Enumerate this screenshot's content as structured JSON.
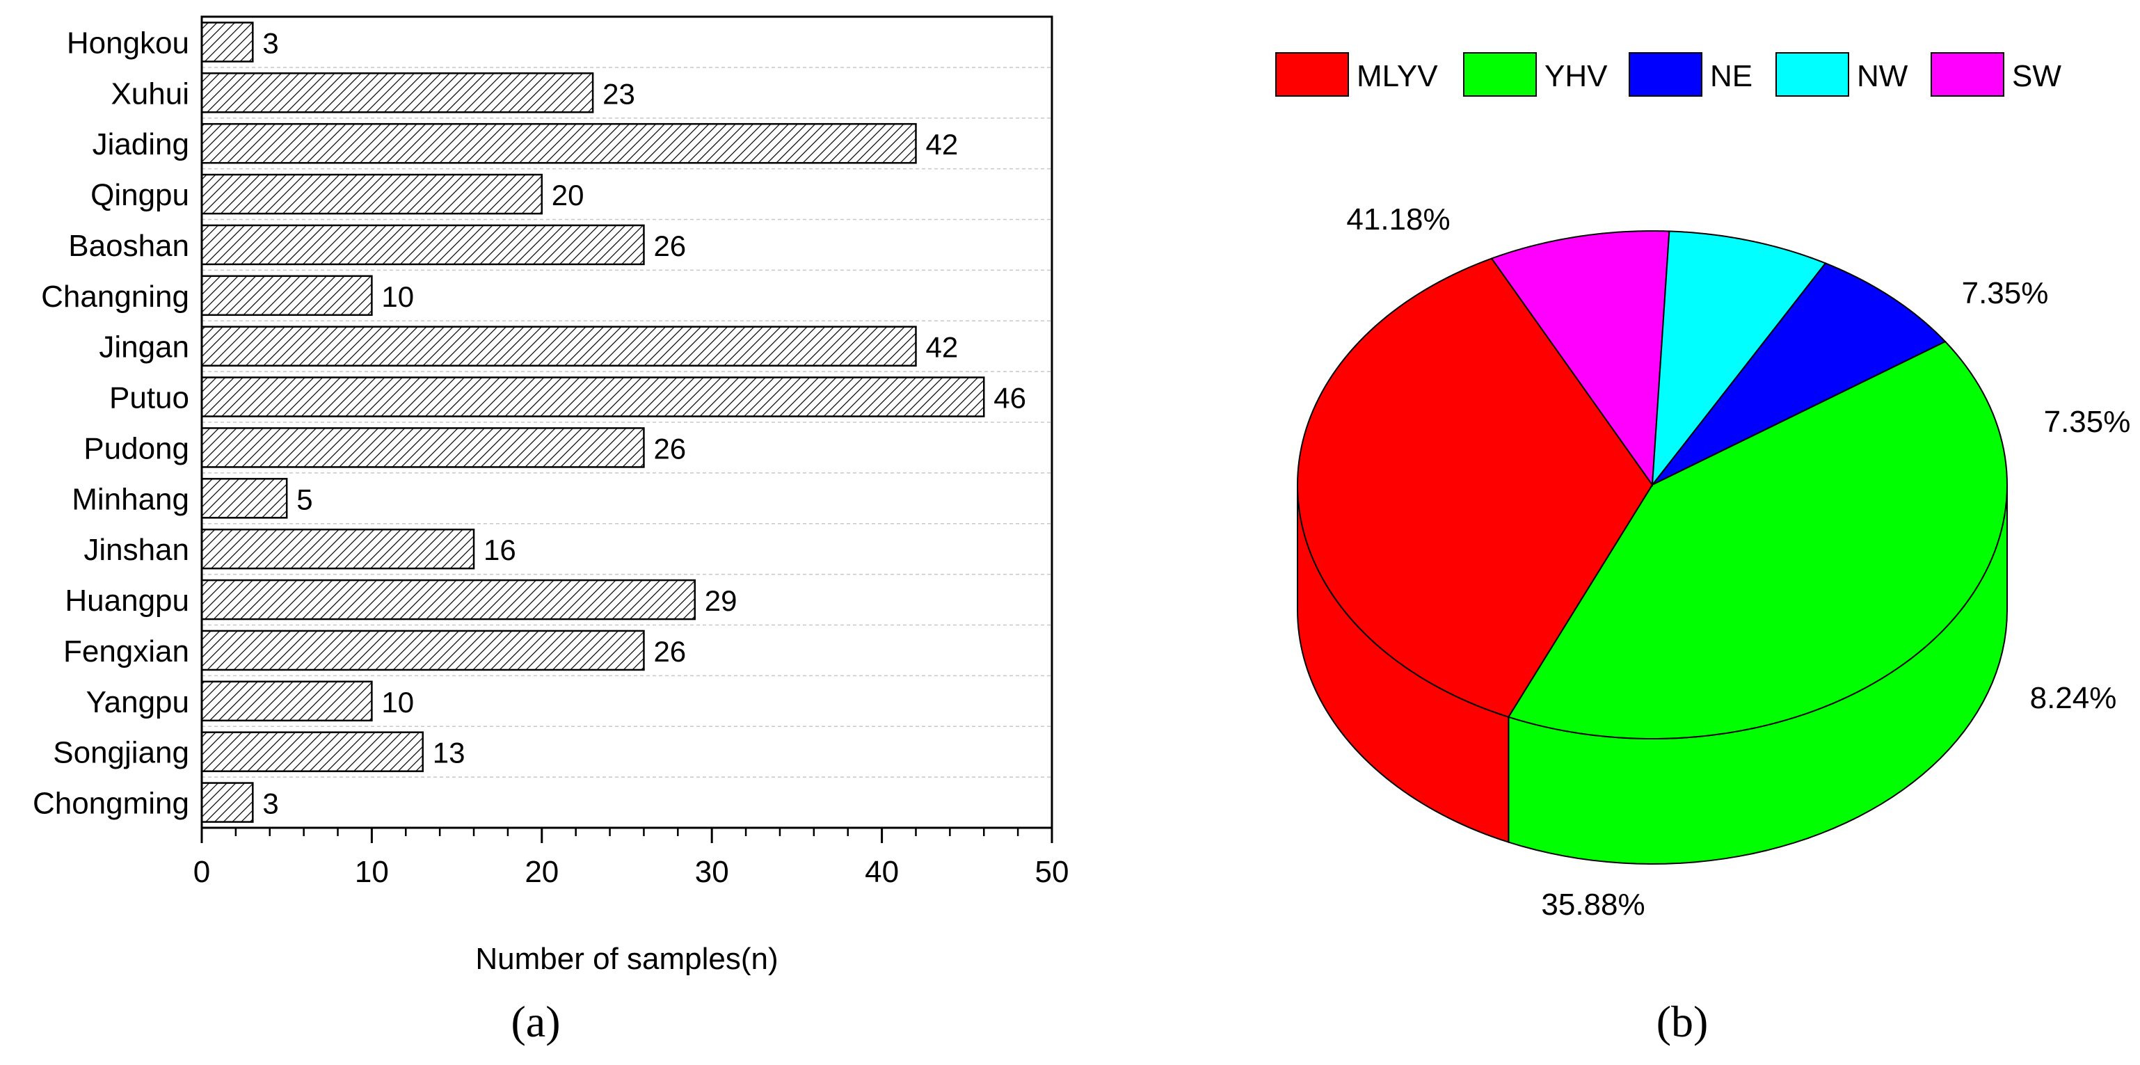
{
  "chart_data": [
    {
      "type": "bar",
      "orientation": "horizontal",
      "panel_label": "a",
      "categories": [
        "Hongkou",
        "Xuhui",
        "Jiading",
        "Qingpu",
        "Baoshan",
        "Changning",
        "Jingan",
        "Putuo",
        "Pudong",
        "Minhang",
        "Jinshan",
        "Huangpu",
        "Fengxian",
        "Yangpu",
        "Songjiang",
        "Chongming"
      ],
      "values": [
        3,
        23,
        42,
        20,
        26,
        10,
        42,
        46,
        26,
        5,
        16,
        29,
        26,
        10,
        13,
        3
      ],
      "data_labels": [
        "3",
        "23",
        "42",
        "20",
        "26",
        "10",
        "42",
        "46",
        "26",
        "5",
        "16",
        "29",
        "26",
        "10",
        "13",
        "3"
      ],
      "xlabel": "Number of samples(n)",
      "ylabel": "",
      "xlim": [
        0,
        50
      ],
      "xticks": [
        "0",
        "10",
        "20",
        "30",
        "40",
        "50"
      ],
      "grid": "horizontal dashed",
      "bar_fill": "diagonal hatch"
    },
    {
      "type": "pie",
      "style": "3d",
      "panel_label": "b",
      "labels": [
        "MLYV",
        "YHV",
        "NE",
        "NW",
        "SW"
      ],
      "values": [
        35.88,
        41.18,
        7.35,
        7.35,
        8.24
      ],
      "value_labels": [
        "35.88%",
        "41.18%",
        "7.35%",
        "7.35%",
        "8.24%"
      ],
      "colors": [
        "#ff0000",
        "#00ff00",
        "#0000ff",
        "#00ffff",
        "#ff00ff"
      ],
      "legend": "top"
    }
  ]
}
